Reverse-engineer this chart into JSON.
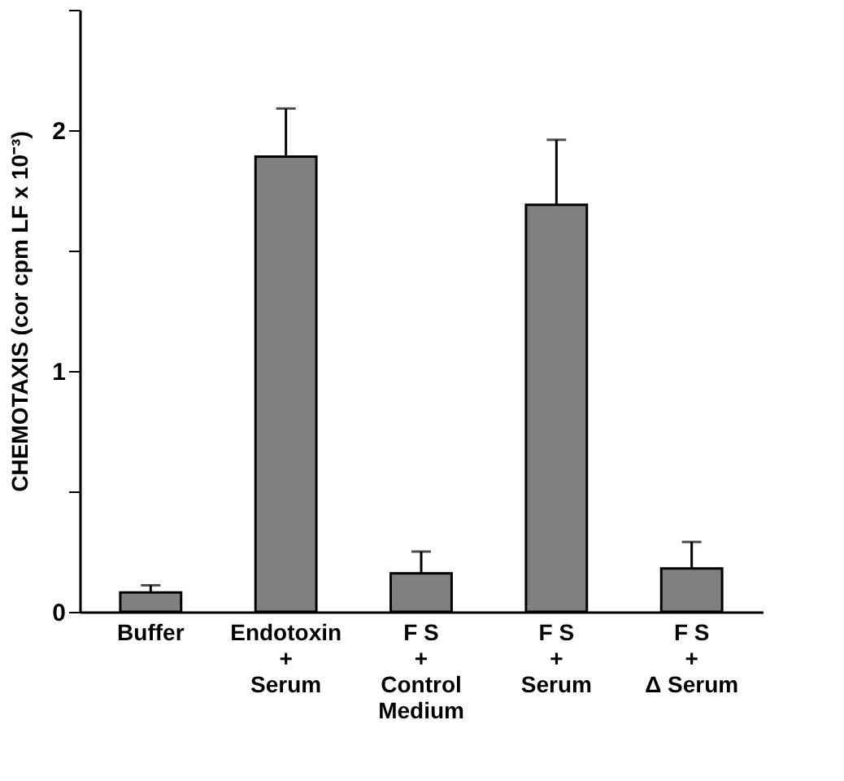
{
  "chart_data": {
    "type": "bar",
    "ylabel": "CHEMOTAXIS (cor cpm LF x 10⁻³)",
    "categories": [
      "Buffer",
      "Endotoxin\n+\nSerum",
      "F S\n+\nControl\nMedium",
      "F S\n+\nSerum",
      "F S\n+\nΔ Serum"
    ],
    "values": [
      0.08,
      1.89,
      0.16,
      1.69,
      0.18
    ],
    "errors": [
      [
        0.08,
        0.11
      ],
      [
        1.89,
        2.09
      ],
      [
        0.16,
        0.25
      ],
      [
        1.69,
        1.96
      ],
      [
        0.18,
        0.29
      ]
    ],
    "color": "#808080",
    "ylim": [
      0,
      2.5
    ],
    "yticks": [
      0,
      {
        "value": 0.5,
        "label": null
      },
      1,
      {
        "value": 1.5,
        "label": null
      },
      2,
      {
        "value": 2.5,
        "label": null
      }
    ],
    "grid": false
  }
}
